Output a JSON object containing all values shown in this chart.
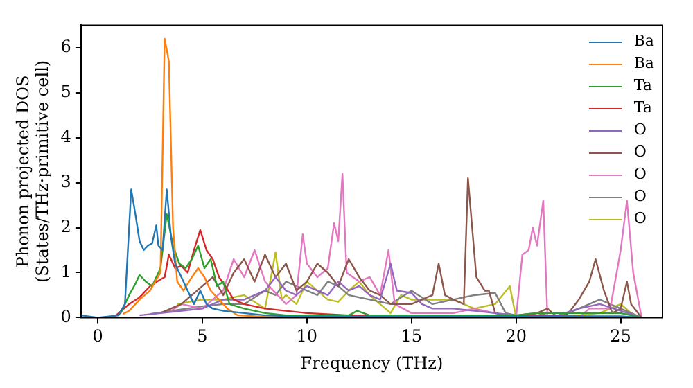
{
  "chart_data": {
    "type": "line",
    "xlabel": "Frequency (THz)",
    "ylabel": "Phonon projected DOS\n(States/THz·primitive cell)",
    "xlim": [
      -0.8,
      27
    ],
    "ylim": [
      0,
      6.5
    ],
    "xticks": [
      0,
      5,
      10,
      15,
      20,
      25
    ],
    "yticks": [
      0,
      1,
      2,
      3,
      4,
      5,
      6
    ],
    "grid": false,
    "legend": "top right",
    "marker": "none",
    "line_style": "solid",
    "series": [
      {
        "name": "Ba",
        "color": "#1f77b4",
        "x": [
          -0.8,
          0,
          1,
          1.3,
          1.6,
          1.8,
          2,
          2.2,
          2.4,
          2.6,
          2.8,
          2.9,
          3.1,
          3.3,
          3.5,
          3.7,
          4,
          4.3,
          4.6,
          4.9,
          5.2,
          5.5,
          6,
          7,
          8,
          10,
          15,
          20,
          25,
          26
        ],
        "values": [
          0.05,
          0,
          0.05,
          0.3,
          2.85,
          2.3,
          1.7,
          1.5,
          1.6,
          1.65,
          2.05,
          1.6,
          1.5,
          2.85,
          1.8,
          1.2,
          0.9,
          0.6,
          0.3,
          0.6,
          0.3,
          0.2,
          0.15,
          0.1,
          0.05,
          0.02,
          0.02,
          0.03,
          0.03,
          0
        ]
      },
      {
        "name": "Ba",
        "color": "#ff7f0e",
        "x": [
          1.2,
          1.5,
          2,
          2.5,
          3,
          3.2,
          3.4,
          3.6,
          3.8,
          4.1,
          4.5,
          4.8,
          5.1,
          5.4,
          5.8,
          6.2,
          6.7,
          8,
          26
        ],
        "values": [
          0.08,
          0.15,
          0.4,
          0.6,
          1,
          6.2,
          5.7,
          2,
          0.8,
          0.6,
          0.9,
          1.1,
          0.9,
          0.6,
          0.4,
          0.2,
          0.05,
          0.02,
          0
        ]
      },
      {
        "name": "Ta",
        "color": "#2ca02c",
        "x": [
          1.1,
          1.5,
          1.8,
          2,
          2.3,
          2.6,
          3,
          3.3,
          3.6,
          3.9,
          4.2,
          4.5,
          4.8,
          5.1,
          5.4,
          5.7,
          6,
          6.3,
          7,
          8,
          9,
          12,
          12.4,
          13,
          20,
          21,
          25,
          26
        ],
        "values": [
          0.1,
          0.5,
          0.75,
          0.95,
          0.8,
          0.7,
          1.1,
          2.3,
          1.6,
          1.2,
          1.1,
          1.3,
          1.6,
          1.1,
          1.3,
          0.7,
          0.8,
          0.3,
          0.2,
          0.1,
          0.05,
          0.05,
          0.15,
          0.05,
          0.05,
          0.1,
          0.1,
          0
        ]
      },
      {
        "name": "Ta",
        "color": "#d62728",
        "x": [
          0.8,
          1.5,
          2,
          2.5,
          3,
          3.2,
          3.4,
          3.7,
          4,
          4.3,
          4.6,
          4.9,
          5.2,
          5.5,
          5.8,
          6.1,
          6.5,
          7,
          8,
          9,
          10,
          12,
          15,
          20,
          26
        ],
        "values": [
          0.02,
          0.3,
          0.45,
          0.7,
          0.85,
          0.9,
          1.4,
          1.1,
          1.15,
          1,
          1.5,
          1.95,
          1.5,
          1.3,
          0.9,
          0.7,
          0.4,
          0.3,
          0.2,
          0.15,
          0.1,
          0.05,
          0.05,
          0.05,
          0
        ]
      },
      {
        "name": "O",
        "color": "#9467bd",
        "x": [
          2,
          5,
          6,
          7,
          8,
          8.5,
          9,
          9.5,
          10,
          10.5,
          11,
          11.5,
          12,
          12.5,
          13,
          13.5,
          14,
          14.3,
          15,
          15.5,
          16,
          17,
          18,
          19,
          20,
          22,
          23,
          24,
          25,
          26
        ],
        "values": [
          0.05,
          0.2,
          0.4,
          0.4,
          0.6,
          0.9,
          0.6,
          0.5,
          0.7,
          0.6,
          0.5,
          0.8,
          0.6,
          0.7,
          0.5,
          0.4,
          1.2,
          0.6,
          0.55,
          0.3,
          0.2,
          0.2,
          0.15,
          0.1,
          0.05,
          0.05,
          0.2,
          0.3,
          0.15,
          0
        ]
      },
      {
        "name": "O",
        "color": "#8c564b",
        "x": [
          3,
          4,
          4.5,
          5,
          5.5,
          6,
          6.5,
          7,
          7.5,
          8,
          8.5,
          9,
          9.5,
          10,
          10.5,
          11,
          11.5,
          12,
          12.5,
          13,
          13.5,
          14,
          15,
          16,
          16.3,
          16.6,
          17,
          17.5,
          17.7,
          17.9,
          18.1,
          18.5,
          18.7,
          19,
          20,
          21,
          21.5,
          22,
          22.5,
          23,
          23.5,
          23.8,
          24.2,
          24.6,
          25,
          25.3,
          25.5,
          26
        ],
        "values": [
          0.1,
          0.3,
          0.5,
          0.7,
          0.9,
          0.5,
          1,
          1.3,
          0.8,
          1.4,
          0.9,
          1.2,
          0.6,
          0.8,
          1.2,
          1,
          0.7,
          1.3,
          0.9,
          0.6,
          0.5,
          0.3,
          0.3,
          0.5,
          1.2,
          0.5,
          0.4,
          0.3,
          3.1,
          2,
          0.9,
          0.6,
          0.6,
          0.1,
          0,
          0.1,
          0.2,
          0,
          0.1,
          0.4,
          0.8,
          1.3,
          0.6,
          0.1,
          0.2,
          0.8,
          0.3,
          0
        ]
      },
      {
        "name": "O",
        "color": "#e377c2",
        "x": [
          3.5,
          4,
          5,
          6,
          6.5,
          7,
          7.5,
          8,
          9,
          9.5,
          9.8,
          10,
          10.5,
          11,
          11.3,
          11.5,
          11.7,
          11.9,
          12.5,
          13,
          13.5,
          13.9,
          14.2,
          15,
          17,
          18,
          19,
          20,
          20.3,
          20.6,
          20.8,
          21,
          21.3,
          21.5,
          23,
          23.5,
          24.5,
          25,
          25.3,
          25.6,
          26
        ],
        "values": [
          0.15,
          0.3,
          0.2,
          0.6,
          1.3,
          0.9,
          1.5,
          0.8,
          0.3,
          0.5,
          1.85,
          1.2,
          0.9,
          1.1,
          2.1,
          1.7,
          3.2,
          1,
          0.8,
          0.9,
          0.5,
          1.5,
          0.3,
          0.1,
          0.1,
          0.2,
          0.1,
          0,
          1.4,
          1.5,
          2,
          1.6,
          2.6,
          0,
          0,
          0.2,
          0.2,
          1.5,
          2.6,
          1,
          0
        ]
      },
      {
        "name": "O",
        "color": "#7f7f7f",
        "x": [
          2.5,
          5,
          6,
          7,
          8,
          8.5,
          9,
          10,
          10.5,
          11,
          11.5,
          12,
          13,
          14,
          15,
          16,
          17,
          18,
          19,
          19.5,
          20,
          21,
          22,
          23,
          24,
          25,
          26
        ],
        "values": [
          0.08,
          0.25,
          0.3,
          0.3,
          0.6,
          0.5,
          0.8,
          0.6,
          0.5,
          0.8,
          0.7,
          0.5,
          0.4,
          0.3,
          0.6,
          0.3,
          0.4,
          0.5,
          0.55,
          0.1,
          0.05,
          0.1,
          0,
          0.2,
          0.4,
          0.2,
          0
        ]
      },
      {
        "name": "O",
        "color": "#bcbd22",
        "x": [
          3.8,
          5,
          6,
          7,
          8,
          8.5,
          8.8,
          9,
          9.5,
          10,
          10.5,
          11,
          11.5,
          12,
          12.5,
          13,
          13.5,
          14,
          14.5,
          15,
          16,
          17,
          18,
          19,
          19.7,
          20,
          22,
          24,
          25,
          25.5,
          26
        ],
        "values": [
          0.3,
          0.4,
          0.4,
          0.5,
          0.2,
          1.45,
          0.4,
          0.5,
          0.3,
          0.8,
          0.6,
          0.4,
          0.35,
          0.6,
          0.8,
          0.5,
          0.3,
          0.1,
          0.5,
          0.4,
          0.4,
          0.4,
          0.2,
          0.3,
          0.7,
          0,
          0,
          0.1,
          0.3,
          0.1,
          0
        ]
      }
    ]
  }
}
